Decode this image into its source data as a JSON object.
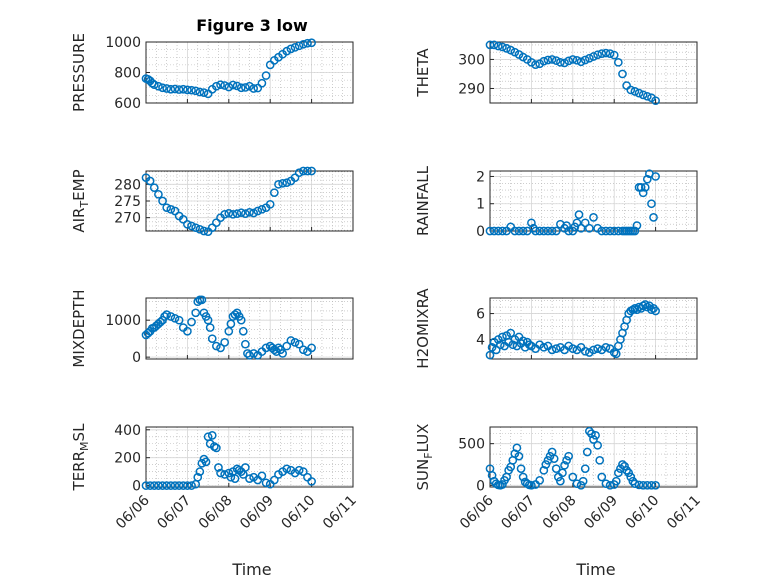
{
  "figure": {
    "title": "Figure 3 low",
    "xlabel": "Time"
  },
  "colors": {
    "marker": "#0072BD",
    "axis": "#262626"
  },
  "chart_data": [
    {
      "type": "scatter",
      "name_hint": "pressure",
      "ylabel": "PRESSURE",
      "ylim": [
        600,
        1000
      ],
      "yticks": [
        600,
        800,
        1000
      ],
      "xticks": [
        "06/06",
        "06/07",
        "06/08",
        "06/09",
        "06/10",
        "06/11"
      ],
      "x": [
        0.0,
        0.05,
        0.1,
        0.15,
        0.2,
        0.3,
        0.4,
        0.5,
        0.6,
        0.7,
        0.8,
        0.9,
        1.0,
        1.1,
        1.2,
        1.3,
        1.4,
        1.5,
        1.6,
        1.7,
        1.8,
        1.9,
        2.0,
        2.1,
        2.2,
        2.3,
        2.4,
        2.5,
        2.6,
        2.7,
        2.8,
        2.9,
        3.0,
        3.1,
        3.2,
        3.3,
        3.4,
        3.5,
        3.6,
        3.7,
        3.8,
        3.9,
        4.0
      ],
      "y": [
        760,
        755,
        745,
        730,
        720,
        710,
        700,
        695,
        690,
        692,
        688,
        690,
        686,
        684,
        680,
        672,
        668,
        660,
        690,
        710,
        720,
        715,
        705,
        718,
        712,
        700,
        702,
        710,
        695,
        698,
        730,
        780,
        850,
        880,
        900,
        920,
        940,
        955,
        965,
        975,
        985,
        992,
        995
      ]
    },
    {
      "type": "scatter",
      "name_hint": "theta",
      "ylabel": "THETA",
      "ylim": [
        285,
        306
      ],
      "yticks": [
        290,
        300
      ],
      "xticks": [
        "06/06",
        "06/07",
        "06/08",
        "06/09",
        "06/10",
        "06/11"
      ],
      "x": [
        0.0,
        0.1,
        0.2,
        0.3,
        0.4,
        0.5,
        0.6,
        0.7,
        0.8,
        0.9,
        1.0,
        1.1,
        1.2,
        1.3,
        1.4,
        1.5,
        1.6,
        1.7,
        1.8,
        1.9,
        2.0,
        2.1,
        2.2,
        2.3,
        2.4,
        2.5,
        2.6,
        2.7,
        2.8,
        2.9,
        3.0,
        3.1,
        3.2,
        3.3,
        3.4,
        3.5,
        3.6,
        3.7,
        3.8,
        3.9,
        4.0
      ],
      "y": [
        305,
        305,
        304.6,
        304.3,
        303.8,
        303.2,
        302.5,
        301.7,
        300.8,
        300.0,
        299.0,
        298.2,
        298.5,
        299.4,
        299.8,
        300.0,
        299.6,
        299.0,
        298.8,
        299.5,
        300.0,
        299.7,
        299.2,
        299.8,
        300.4,
        301.0,
        301.6,
        302.0,
        302.2,
        302.0,
        301.5,
        299.0,
        295.0,
        291.0,
        289.5,
        289.0,
        288.4,
        287.8,
        287.3,
        286.8,
        285.8
      ]
    },
    {
      "type": "scatter",
      "name_hint": "air_temp",
      "ylabel": "AIR_TEMP",
      "ylim": [
        266,
        284
      ],
      "yticks": [
        270,
        275,
        280
      ],
      "xticks": [
        "06/06",
        "06/07",
        "06/08",
        "06/09",
        "06/10",
        "06/11"
      ],
      "x": [
        0.0,
        0.1,
        0.2,
        0.3,
        0.4,
        0.5,
        0.6,
        0.7,
        0.8,
        0.9,
        1.0,
        1.1,
        1.2,
        1.3,
        1.4,
        1.5,
        1.6,
        1.7,
        1.8,
        1.9,
        2.0,
        2.1,
        2.2,
        2.3,
        2.4,
        2.5,
        2.6,
        2.7,
        2.8,
        2.9,
        3.0,
        3.1,
        3.2,
        3.3,
        3.4,
        3.5,
        3.6,
        3.7,
        3.8,
        3.9,
        4.0
      ],
      "y": [
        282,
        281,
        279,
        277,
        275,
        273,
        272.5,
        272,
        270.5,
        269.5,
        268,
        267.5,
        267,
        266.5,
        266,
        265.8,
        267,
        268.5,
        270,
        271,
        271.3,
        271,
        271.2,
        271.5,
        271.2,
        271.6,
        271.4,
        272,
        272.5,
        273,
        274,
        277.5,
        280,
        280.3,
        280.5,
        281,
        282,
        283.5,
        284,
        284,
        284
      ]
    },
    {
      "type": "scatter",
      "name_hint": "rainfall",
      "ylabel": "RAINFALL",
      "ylim": [
        0,
        2.2
      ],
      "yticks": [
        0,
        1,
        2
      ],
      "xticks": [
        "06/06",
        "06/07",
        "06/08",
        "06/09",
        "06/10",
        "06/11"
      ],
      "x": [
        0.0,
        0.1,
        0.2,
        0.3,
        0.4,
        0.5,
        0.6,
        0.7,
        0.8,
        0.9,
        1.0,
        1.05,
        1.1,
        1.2,
        1.3,
        1.4,
        1.5,
        1.6,
        1.7,
        1.8,
        1.85,
        1.9,
        2.0,
        2.05,
        2.1,
        2.15,
        2.2,
        2.3,
        2.4,
        2.5,
        2.6,
        2.7,
        2.8,
        2.9,
        3.0,
        3.1,
        3.2,
        3.25,
        3.3,
        3.35,
        3.4,
        3.45,
        3.5,
        3.55,
        3.6,
        3.65,
        3.7,
        3.75,
        3.8,
        3.85,
        3.9,
        3.95,
        4.0
      ],
      "y": [
        0,
        0,
        0,
        0,
        0,
        0.15,
        0,
        0,
        0,
        0,
        0.3,
        0.1,
        0,
        0,
        0,
        0,
        0,
        0,
        0.25,
        0.1,
        0.2,
        0,
        0,
        0.15,
        0.3,
        0.6,
        0.1,
        0.3,
        0.1,
        0.5,
        0.1,
        0,
        0,
        0,
        0,
        0,
        0,
        0,
        0,
        0,
        0,
        0,
        0,
        0.2,
        1.6,
        1.6,
        1.4,
        1.6,
        1.9,
        2.1,
        1.0,
        0.5,
        2.0
      ]
    },
    {
      "type": "scatter",
      "name_hint": "mixdepth",
      "ylabel": "MIXDEPTH",
      "ylim": [
        -50,
        1600
      ],
      "yticks": [
        0,
        1000
      ],
      "xticks": [
        "06/06",
        "06/07",
        "06/08",
        "06/09",
        "06/10",
        "06/11"
      ],
      "x": [
        0.0,
        0.05,
        0.1,
        0.15,
        0.2,
        0.25,
        0.3,
        0.35,
        0.4,
        0.45,
        0.5,
        0.6,
        0.7,
        0.8,
        0.9,
        1.0,
        1.1,
        1.2,
        1.25,
        1.3,
        1.35,
        1.4,
        1.45,
        1.5,
        1.55,
        1.6,
        1.7,
        1.8,
        1.9,
        2.0,
        2.05,
        2.1,
        2.15,
        2.2,
        2.25,
        2.3,
        2.35,
        2.4,
        2.45,
        2.5,
        2.6,
        2.7,
        2.8,
        2.9,
        3.0,
        3.05,
        3.1,
        3.15,
        3.2,
        3.25,
        3.3,
        3.4,
        3.5,
        3.6,
        3.7,
        3.8,
        3.9,
        4.0
      ],
      "y": [
        600,
        650,
        700,
        780,
        800,
        850,
        900,
        950,
        1000,
        1100,
        1150,
        1100,
        1050,
        1000,
        800,
        700,
        950,
        1200,
        1500,
        1550,
        1550,
        1200,
        1100,
        1000,
        800,
        500,
        300,
        250,
        400,
        700,
        900,
        1100,
        1150,
        1200,
        1100,
        1000,
        700,
        350,
        100,
        50,
        100,
        50,
        150,
        250,
        300,
        250,
        200,
        150,
        250,
        200,
        100,
        300,
        450,
        400,
        350,
        200,
        150,
        250
      ]
    },
    {
      "type": "scatter",
      "name_hint": "h2omixra",
      "ylabel": "H2OMIXRA",
      "ylim": [
        2.5,
        7.2
      ],
      "yticks": [
        4,
        6
      ],
      "xticks": [
        "06/06",
        "06/07",
        "06/08",
        "06/09",
        "06/10",
        "06/11"
      ],
      "x": [
        0.0,
        0.05,
        0.1,
        0.15,
        0.2,
        0.25,
        0.3,
        0.35,
        0.4,
        0.45,
        0.5,
        0.55,
        0.6,
        0.65,
        0.7,
        0.75,
        0.8,
        0.85,
        0.9,
        0.95,
        1.0,
        1.1,
        1.2,
        1.3,
        1.4,
        1.5,
        1.6,
        1.7,
        1.8,
        1.9,
        2.0,
        2.1,
        2.2,
        2.3,
        2.4,
        2.5,
        2.6,
        2.7,
        2.8,
        2.9,
        3.0,
        3.05,
        3.1,
        3.15,
        3.2,
        3.25,
        3.3,
        3.35,
        3.4,
        3.45,
        3.5,
        3.55,
        3.6,
        3.65,
        3.7,
        3.75,
        3.8,
        3.85,
        3.9,
        3.95,
        4.0
      ],
      "y": [
        2.8,
        3.4,
        3.8,
        3.2,
        4.0,
        3.6,
        4.2,
        3.5,
        4.3,
        3.8,
        4.5,
        3.6,
        4.0,
        3.5,
        4.2,
        3.7,
        3.9,
        3.4,
        3.8,
        3.6,
        3.5,
        3.3,
        3.6,
        3.4,
        3.5,
        3.2,
        3.3,
        3.4,
        3.2,
        3.5,
        3.3,
        3.2,
        3.4,
        3.1,
        3.0,
        3.2,
        3.3,
        3.2,
        3.4,
        3.3,
        3.0,
        2.9,
        3.5,
        4.0,
        4.5,
        5.0,
        5.5,
        6.0,
        6.2,
        6.3,
        6.4,
        6.3,
        6.5,
        6.4,
        6.6,
        6.7,
        6.5,
        6.6,
        6.3,
        6.4,
        6.2
      ]
    },
    {
      "type": "scatter",
      "name_hint": "terr_msl",
      "ylabel": "TERR_MSL",
      "ylim": [
        -10,
        420
      ],
      "yticks": [
        0,
        200,
        400
      ],
      "xticks": [
        "06/06",
        "06/07",
        "06/08",
        "06/09",
        "06/10",
        "06/11"
      ],
      "x": [
        0.0,
        0.1,
        0.2,
        0.3,
        0.4,
        0.5,
        0.6,
        0.7,
        0.8,
        0.9,
        1.0,
        1.1,
        1.2,
        1.25,
        1.3,
        1.35,
        1.4,
        1.45,
        1.5,
        1.55,
        1.6,
        1.65,
        1.7,
        1.75,
        1.8,
        1.9,
        2.0,
        2.05,
        2.1,
        2.15,
        2.2,
        2.25,
        2.3,
        2.35,
        2.4,
        2.5,
        2.6,
        2.7,
        2.8,
        2.9,
        3.0,
        3.1,
        3.2,
        3.3,
        3.4,
        3.5,
        3.6,
        3.7,
        3.8,
        3.9,
        4.0
      ],
      "y": [
        0,
        0,
        0,
        0,
        0,
        0,
        0,
        0,
        0,
        0,
        0,
        0,
        10,
        60,
        100,
        160,
        190,
        170,
        350,
        300,
        360,
        280,
        270,
        130,
        90,
        80,
        90,
        60,
        100,
        50,
        120,
        110,
        100,
        80,
        130,
        50,
        60,
        40,
        70,
        20,
        10,
        40,
        80,
        100,
        120,
        110,
        90,
        110,
        100,
        60,
        30
      ]
    },
    {
      "type": "scatter",
      "name_hint": "sun_flux",
      "ylabel": "SUN_FLUX",
      "ylim": [
        -20,
        700
      ],
      "yticks": [
        0,
        500
      ],
      "xticks": [
        "06/06",
        "06/07",
        "06/08",
        "06/09",
        "06/10",
        "06/11"
      ],
      "x": [
        0.0,
        0.05,
        0.1,
        0.15,
        0.2,
        0.25,
        0.3,
        0.35,
        0.4,
        0.45,
        0.5,
        0.55,
        0.6,
        0.65,
        0.7,
        0.75,
        0.8,
        0.85,
        0.9,
        0.95,
        1.0,
        1.1,
        1.2,
        1.3,
        1.35,
        1.4,
        1.45,
        1.5,
        1.55,
        1.6,
        1.65,
        1.7,
        1.75,
        1.8,
        1.85,
        1.9,
        2.0,
        2.1,
        2.2,
        2.25,
        2.3,
        2.35,
        2.4,
        2.45,
        2.5,
        2.55,
        2.6,
        2.65,
        2.7,
        2.8,
        2.9,
        3.0,
        3.05,
        3.1,
        3.15,
        3.2,
        3.25,
        3.3,
        3.35,
        3.4,
        3.45,
        3.5,
        3.6,
        3.7,
        3.8,
        3.9,
        4.0
      ],
      "y": [
        200,
        120,
        50,
        20,
        5,
        0,
        10,
        60,
        100,
        180,
        220,
        300,
        380,
        450,
        350,
        200,
        100,
        40,
        20,
        5,
        0,
        10,
        60,
        180,
        250,
        300,
        350,
        400,
        320,
        200,
        100,
        50,
        150,
        240,
        300,
        350,
        100,
        20,
        0,
        50,
        200,
        400,
        650,
        620,
        550,
        600,
        480,
        300,
        100,
        20,
        0,
        10,
        50,
        150,
        200,
        250,
        230,
        180,
        150,
        100,
        50,
        20,
        5,
        0,
        0,
        0,
        0
      ]
    }
  ]
}
